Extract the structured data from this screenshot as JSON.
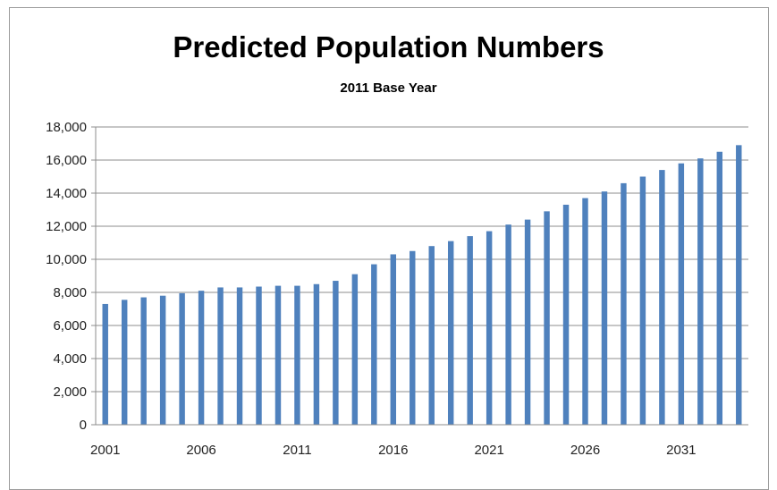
{
  "chart_data": {
    "type": "bar",
    "title": "Predicted Population Numbers",
    "subtitle": "2011 Base Year",
    "xlabel": "",
    "ylabel": "",
    "ylim": [
      0,
      18000
    ],
    "grid": true,
    "y_ticks": [
      "0",
      "2,000",
      "4,000",
      "6,000",
      "8,000",
      "10,000",
      "12,000",
      "14,000",
      "16,000",
      "18,000"
    ],
    "x_tick_labels": [
      "2001",
      "2006",
      "2011",
      "2016",
      "2021",
      "2026",
      "2031"
    ],
    "categories": [
      "2001",
      "2002",
      "2003",
      "2004",
      "2005",
      "2006",
      "2007",
      "2008",
      "2009",
      "2010",
      "2011",
      "2012",
      "2013",
      "2014",
      "2015",
      "2016",
      "2017",
      "2018",
      "2019",
      "2020",
      "2021",
      "2022",
      "2023",
      "2024",
      "2025",
      "2026",
      "2027",
      "2028",
      "2029",
      "2030",
      "2031",
      "2032",
      "2033",
      "2034"
    ],
    "values": [
      7300,
      7550,
      7700,
      7800,
      7950,
      8100,
      8300,
      8300,
      8350,
      8400,
      8400,
      8500,
      8700,
      9100,
      9700,
      10300,
      10500,
      10800,
      11100,
      11400,
      11700,
      12100,
      12400,
      12900,
      13300,
      13700,
      14100,
      14600,
      15000,
      15400,
      15800,
      16100,
      16500,
      16900
    ],
    "bar_color": "#4f81bd"
  }
}
